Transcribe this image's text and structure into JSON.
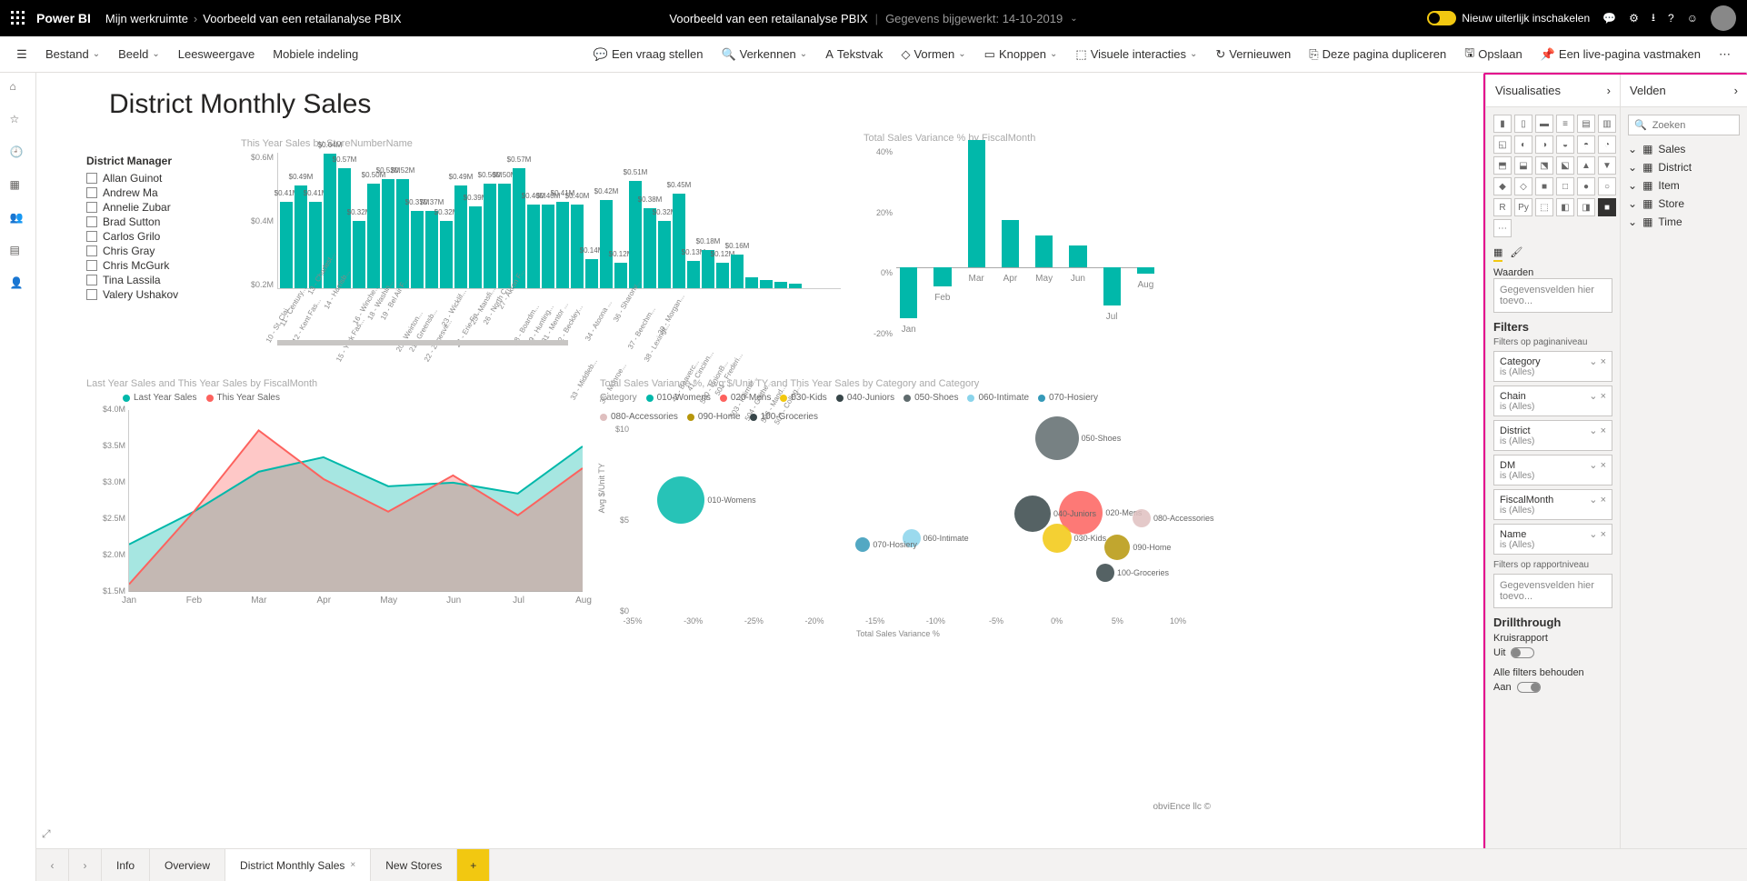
{
  "topbar": {
    "brand": "Power BI",
    "crumb1": "Mijn werkruimte",
    "crumb2": "Voorbeeld van een retailanalyse PBIX",
    "center_title": "Voorbeeld van een retailanalyse PBIX",
    "center_sub": "Gegevens bijgewerkt: 14-10-2019",
    "toggle_label": "Nieuw uiterlijk inschakelen"
  },
  "menubar": {
    "bestand": "Bestand",
    "beeld": "Beeld",
    "leesweergave": "Leesweergave",
    "mobiele": "Mobiele indeling",
    "vraag": "Een vraag stellen",
    "verkennen": "Verkennen",
    "tekstvak": "Tekstvak",
    "vormen": "Vormen",
    "knoppen": "Knoppen",
    "visuele": "Visuele interacties",
    "vernieuwen": "Vernieuwen",
    "dupliceren": "Deze pagina dupliceren",
    "opslaan": "Opslaan",
    "pin": "Een live-pagina vastmaken"
  },
  "page": {
    "title": "District Monthly Sales"
  },
  "slicer": {
    "title": "District Manager",
    "options": [
      "Allan Guinot",
      "Andrew Ma",
      "Annelie Zubar",
      "Brad Sutton",
      "Carlos Grilo",
      "Chris Gray",
      "Chris McGurk",
      "Tina Lassila",
      "Valery Ushakov"
    ]
  },
  "bar_chart": {
    "title": "This Year Sales by StoreNumberName",
    "ymax": 0.65,
    "yticks": [
      "$0.6M",
      "$0.4M",
      "$0.2M"
    ],
    "bars": [
      {
        "x": "10 - St. Clai...",
        "v": 0.41,
        "lbl": "$0.41M"
      },
      {
        "x": "11 - Century...",
        "v": 0.49,
        "lbl": "$0.49M"
      },
      {
        "x": "12 - Kent Fas...",
        "v": 0.41,
        "lbl": "$0.41M"
      },
      {
        "x": "13 - Charlest...",
        "v": 0.64,
        "lbl": "$0.64M"
      },
      {
        "x": "14 - Harrisb...",
        "v": 0.57,
        "lbl": "$0.57M"
      },
      {
        "x": "15 - York Fas...",
        "v": 0.32,
        "lbl": "$0.32M"
      },
      {
        "x": "16 - Winche...",
        "v": 0.5,
        "lbl": "$0.50M"
      },
      {
        "x": "18 - Washin...",
        "v": 0.52,
        "lbl": "$0.52M"
      },
      {
        "x": "19 - Bel Air F...",
        "v": 0.52,
        "lbl": "$0.52M"
      },
      {
        "x": "20 - Weirton...",
        "v": 0.37,
        "lbl": "$0.37M"
      },
      {
        "x": "21 - Greensb...",
        "v": 0.37,
        "lbl": "$0.37M"
      },
      {
        "x": "22 - Zanesvil...",
        "v": 0.32,
        "lbl": "$0.32M"
      },
      {
        "x": "23 - Wicklif...",
        "v": 0.49,
        "lbl": "$0.49M"
      },
      {
        "x": "24 - Erie Fa...",
        "v": 0.39,
        "lbl": "$0.39M"
      },
      {
        "x": "25 - Mansfi...",
        "v": 0.5,
        "lbl": "$0.50M"
      },
      {
        "x": "26 - North C...",
        "v": 0.5,
        "lbl": "$0.50M"
      },
      {
        "x": "27 - Akron F...",
        "v": 0.57,
        "lbl": "$0.57M"
      },
      {
        "x": "28 - Boardm...",
        "v": 0.4,
        "lbl": "$0.40M"
      },
      {
        "x": "29 - Hunting...",
        "v": 0.4,
        "lbl": "$0.40M"
      },
      {
        "x": "31 - Mentor ...",
        "v": 0.41,
        "lbl": "$0.41M"
      },
      {
        "x": "32 - Beckley...",
        "v": 0.4,
        "lbl": "$0.40M"
      },
      {
        "x": "33 - Middleb...",
        "v": 0.14,
        "lbl": "$0.14M"
      },
      {
        "x": "34 - Atoona ...",
        "v": 0.42,
        "lbl": "$0.42M"
      },
      {
        "x": "35 - Monroe...",
        "v": 0.12,
        "lbl": "$0.12M"
      },
      {
        "x": "36 - Sharonv...",
        "v": 0.51,
        "lbl": "$0.51M"
      },
      {
        "x": "37 - Beechm...",
        "v": 0.38,
        "lbl": "$0.38M"
      },
      {
        "x": "38 - Lexingt...",
        "v": 0.32,
        "lbl": "$0.32M"
      },
      {
        "x": "39 - Morgan...",
        "v": 0.45,
        "lbl": "$0.45M"
      },
      {
        "x": "40 - Beaverc...",
        "v": 0.13,
        "lbl": "$0.13M"
      },
      {
        "x": "41 - Cincinn...",
        "v": 0.18,
        "lbl": "$0.18M"
      },
      {
        "x": "500 - UnionB...",
        "v": 0.12,
        "lbl": "$0.12M"
      },
      {
        "x": "501 - Frederi...",
        "v": 0.16,
        "lbl": "$0.16M"
      },
      {
        "x": "503 - Fairmo...",
        "v": 0.05,
        "lbl": ""
      },
      {
        "x": "504 - Gaithe...",
        "v": 0.04,
        "lbl": ""
      },
      {
        "x": "506 - Mand...",
        "v": 0.03,
        "lbl": ""
      },
      {
        "x": "507 - Colleg...",
        "v": 0.02,
        "lbl": ""
      }
    ],
    "bar_color": "#01b8aa"
  },
  "variance_chart": {
    "title": "Total Sales Variance % by FiscalMonth",
    "ylabels": [
      "40%",
      "20%",
      "0%",
      "-20%"
    ],
    "months": [
      "Jan",
      "Feb",
      "Mar",
      "Apr",
      "May",
      "Jun",
      "Jul",
      "Aug"
    ],
    "values": [
      -16,
      -6,
      40,
      15,
      10,
      7,
      -12,
      -2
    ],
    "bar_color": "#01b8aa"
  },
  "line_chart": {
    "title": "Last Year Sales and This Year Sales by FiscalMonth",
    "legend": [
      {
        "label": "Last Year Sales",
        "color": "#01b8aa"
      },
      {
        "label": "This Year Sales",
        "color": "#fd625e"
      }
    ],
    "ylabels": [
      "$4.0M",
      "$3.5M",
      "$3.0M",
      "$2.5M",
      "$2.0M",
      "$1.5M"
    ],
    "months": [
      "Jan",
      "Feb",
      "Mar",
      "Apr",
      "May",
      "Jun",
      "Jul",
      "Aug"
    ],
    "last": [
      2.15,
      2.6,
      3.15,
      3.35,
      2.95,
      3.0,
      2.85,
      3.5
    ],
    "this": [
      1.6,
      2.6,
      3.72,
      3.05,
      2.6,
      3.1,
      2.55,
      3.2
    ],
    "ymin": 1.5,
    "ymax": 4.0
  },
  "bubble_chart": {
    "title": "Total Sales Variance %, Avg $/Unit TY and This Year Sales by Category and Category",
    "legend_label": "Category",
    "legend": [
      {
        "label": "010-Womens",
        "color": "#01b8aa"
      },
      {
        "label": "020-Mens",
        "color": "#fd625e"
      },
      {
        "label": "030-Kids",
        "color": "#f2c80f"
      },
      {
        "label": "040-Juniors",
        "color": "#374649"
      },
      {
        "label": "050-Shoes",
        "color": "#5f6b6d"
      },
      {
        "label": "060-Intimate",
        "color": "#8ad4eb"
      },
      {
        "label": "070-Hosiery",
        "color": "#3599b8"
      },
      {
        "label": "080-Accessories",
        "color": "#dfbfbf"
      },
      {
        "label": "090-Home",
        "color": "#b6960b"
      },
      {
        "label": "100-Groceries",
        "color": "#374649"
      }
    ],
    "ylabel": "Avg $/Unit TY",
    "xlabel": "Total Sales Variance %",
    "yticks": [
      "$10",
      "$5",
      "$0"
    ],
    "xticks": [
      "-35%",
      "-30%",
      "-25%",
      "-20%",
      "-15%",
      "-10%",
      "-5%",
      "0%",
      "5%",
      "10%"
    ],
    "xmin": -35,
    "xmax": 10,
    "ymin": 0,
    "ymax": 12,
    "bubbles": [
      {
        "name": "010-Womens",
        "x": -31,
        "y": 7.3,
        "r": 26,
        "color": "#01b8aa"
      },
      {
        "name": "020-Mens",
        "x": 2,
        "y": 6.5,
        "r": 24,
        "color": "#fd625e"
      },
      {
        "name": "030-Kids",
        "x": 0,
        "y": 4.8,
        "r": 16,
        "color": "#f2c80f"
      },
      {
        "name": "040-Juniors",
        "x": -2,
        "y": 6.4,
        "r": 20,
        "color": "#374649"
      },
      {
        "name": "050-Shoes",
        "x": 0,
        "y": 11.4,
        "r": 24,
        "color": "#5f6b6d"
      },
      {
        "name": "060-Intimate",
        "x": -12,
        "y": 4.8,
        "r": 10,
        "color": "#8ad4eb"
      },
      {
        "name": "070-Hosiery",
        "x": -16,
        "y": 4.4,
        "r": 8,
        "color": "#3599b8"
      },
      {
        "name": "080-Accessories",
        "x": 7,
        "y": 6.1,
        "r": 10,
        "color": "#dfbfbf"
      },
      {
        "name": "090-Home",
        "x": 5,
        "y": 4.2,
        "r": 14,
        "color": "#b6960b"
      },
      {
        "name": "100-Groceries",
        "x": 4,
        "y": 2.5,
        "r": 10,
        "color": "#374649"
      }
    ]
  },
  "viz_pane": {
    "title": "Visualisaties",
    "waarden": "Waarden",
    "drop": "Gegevensvelden hier toevo...",
    "filters": "Filters",
    "filters_page": "Filters op paginaniveau",
    "filter_list": [
      {
        "name": "Category",
        "sub": "is (Alles)"
      },
      {
        "name": "Chain",
        "sub": "is (Alles)"
      },
      {
        "name": "District",
        "sub": "is (Alles)"
      },
      {
        "name": "DM",
        "sub": "is (Alles)"
      },
      {
        "name": "FiscalMonth",
        "sub": "is (Alles)"
      },
      {
        "name": "Name",
        "sub": "is (Alles)"
      }
    ],
    "filters_report": "Filters op rapportniveau",
    "drop2": "Gegevensvelden hier toevo...",
    "drill": "Drillthrough",
    "kruis": "Kruisrapport",
    "uit": "Uit",
    "keep": "Alle filters behouden",
    "aan": "Aan"
  },
  "fields_pane": {
    "title": "Velden",
    "search_ph": "Zoeken",
    "tables": [
      "Sales",
      "District",
      "Item",
      "Store",
      "Time"
    ]
  },
  "tabs": {
    "info": "Info",
    "overview": "Overview",
    "district": "District Monthly Sales",
    "new": "New Stores"
  },
  "footer": "obviEnce llc ©"
}
